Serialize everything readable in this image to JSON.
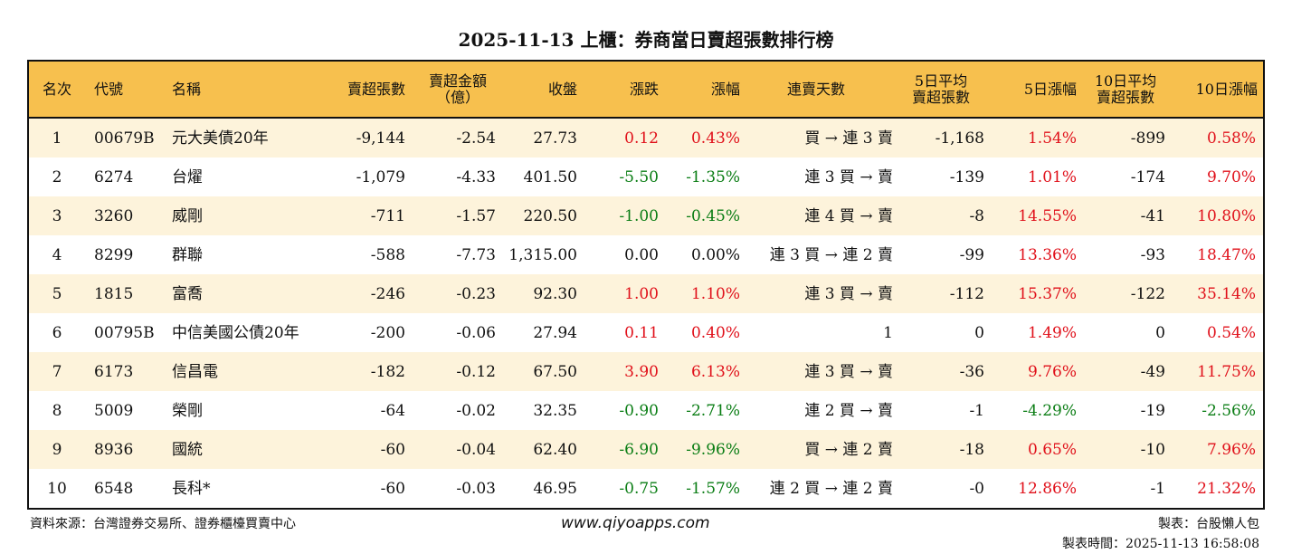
{
  "title": "2025-11-13 上櫃：券商當日賣超張數排行榜",
  "headers": [
    "名次",
    "代號",
    "名稱",
    "賣超張數",
    "賣超金額\n（億）",
    "收盤",
    "漲跌",
    "漲幅",
    "連賣天數",
    "5日平均\n賣超張數",
    "5日漲幅",
    "10日平均\n賣超張數",
    "10日漲幅"
  ],
  "colors": {
    "header_bg": "#f7c04e",
    "odd_row_bg": "#fdf3db",
    "up": "#e0101a",
    "down": "#0a7d14"
  },
  "rows": [
    [
      "1",
      "00679B",
      "元大美債20年",
      "-9,144",
      "-2.54",
      "27.73",
      "0.12",
      "0.43%",
      "買 → 連 3 賣",
      "-1,168",
      "1.54%",
      "-899",
      "0.58%"
    ],
    [
      "2",
      "6274",
      "台燿",
      "-1,079",
      "-4.33",
      "401.50",
      "-5.50",
      "-1.35%",
      "連 3 買 → 賣",
      "-139",
      "1.01%",
      "-174",
      "9.70%"
    ],
    [
      "3",
      "3260",
      "威剛",
      "-711",
      "-1.57",
      "220.50",
      "-1.00",
      "-0.45%",
      "連 4 買 → 賣",
      "-8",
      "14.55%",
      "-41",
      "10.80%"
    ],
    [
      "4",
      "8299",
      "群聯",
      "-588",
      "-7.73",
      "1,315.00",
      "0.00",
      "0.00%",
      "連 3 買 → 連 2 賣",
      "-99",
      "13.36%",
      "-93",
      "18.47%"
    ],
    [
      "5",
      "1815",
      "富喬",
      "-246",
      "-0.23",
      "92.30",
      "1.00",
      "1.10%",
      "連 3 買 → 賣",
      "-112",
      "15.37%",
      "-122",
      "35.14%"
    ],
    [
      "6",
      "00795B",
      "中信美國公債20年",
      "-200",
      "-0.06",
      "27.94",
      "0.11",
      "0.40%",
      "1",
      "0",
      "1.49%",
      "0",
      "0.54%"
    ],
    [
      "7",
      "6173",
      "信昌電",
      "-182",
      "-0.12",
      "67.50",
      "3.90",
      "6.13%",
      "連 3 買 → 賣",
      "-36",
      "9.76%",
      "-49",
      "11.75%"
    ],
    [
      "8",
      "5009",
      "榮剛",
      "-64",
      "-0.02",
      "32.35",
      "-0.90",
      "-2.71%",
      "連 2 買 → 賣",
      "-1",
      "-4.29%",
      "-19",
      "-2.56%"
    ],
    [
      "9",
      "8936",
      "國統",
      "-60",
      "-0.04",
      "62.40",
      "-6.90",
      "-9.96%",
      "買 → 連 2 賣",
      "-18",
      "0.65%",
      "-10",
      "7.96%"
    ],
    [
      "10",
      "6548",
      "長科*",
      "-60",
      "-0.03",
      "46.95",
      "-0.75",
      "-1.57%",
      "連 2 買 → 連 2 賣",
      "-0",
      "12.86%",
      "-1",
      "21.32%"
    ]
  ],
  "footer": {
    "source": "資料來源：台灣證券交易所、證券櫃檯買賣中心",
    "url": "www.qiyoapps.com",
    "maker": "製表：台股懶人包",
    "time": "製表時間：2025-11-13 16:58:08"
  }
}
